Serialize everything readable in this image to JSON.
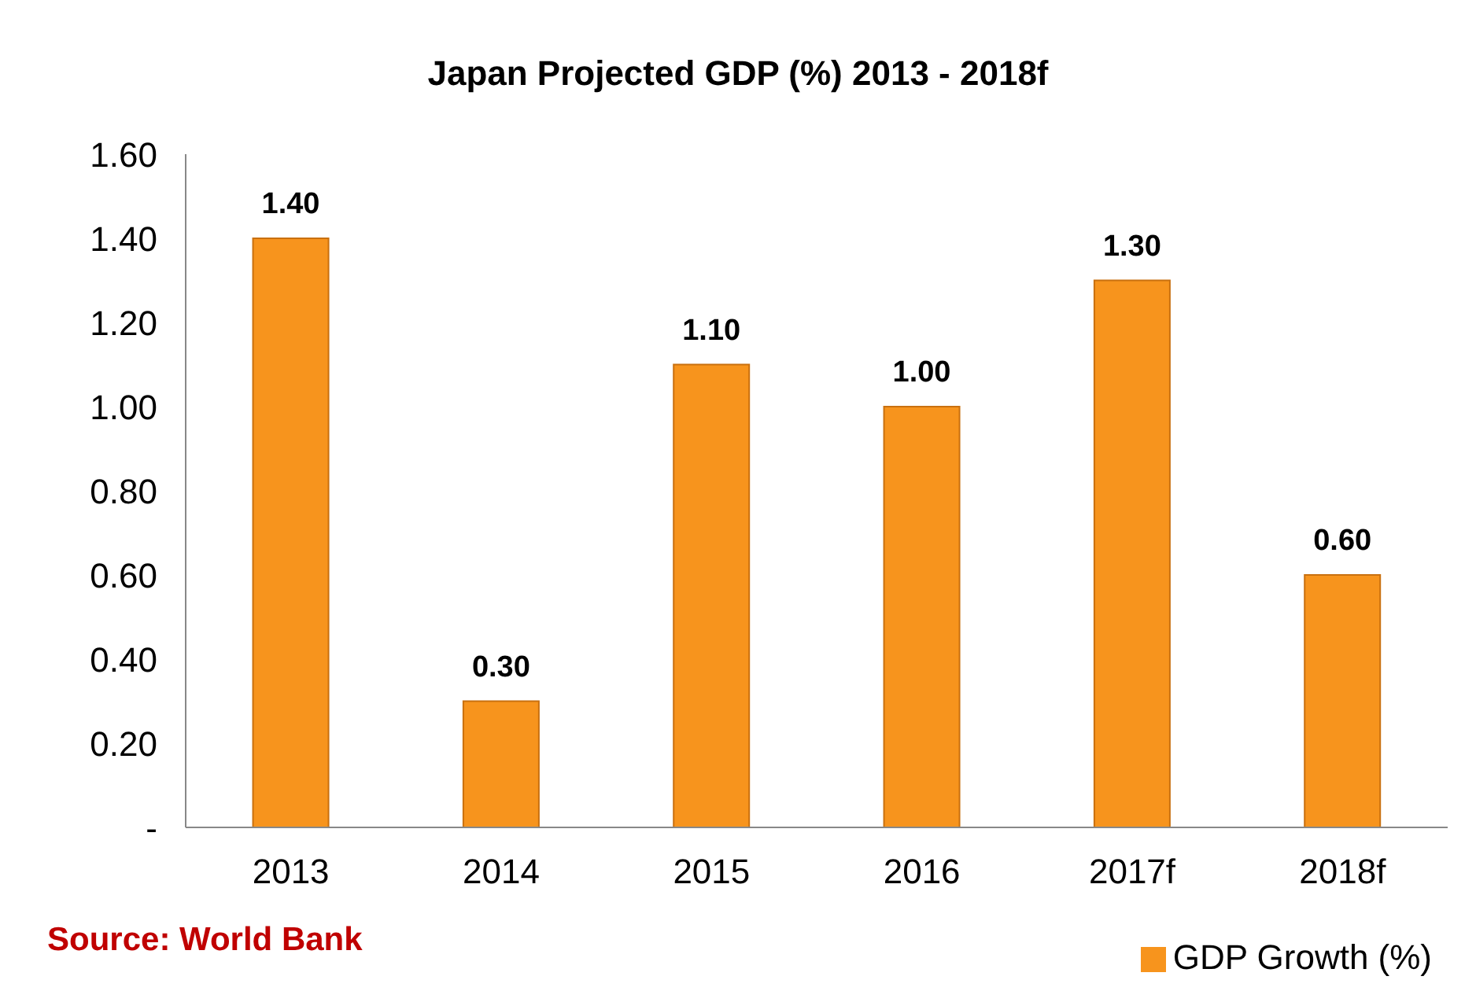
{
  "chart_data": {
    "type": "bar",
    "title": "Japan Projected GDP (%) 2013 - 2018f",
    "categories": [
      "2013",
      "2014",
      "2015",
      "2016",
      "2017f",
      "2018f"
    ],
    "series": [
      {
        "name": "GDP Growth (%)",
        "color": "#f7941d",
        "values": [
          1.4,
          0.3,
          1.1,
          1.0,
          1.3,
          0.6
        ],
        "value_labels": [
          "1.40",
          "0.30",
          "1.10",
          "1.00",
          "1.30",
          "0.60"
        ]
      }
    ],
    "ylim": [
      0,
      1.6
    ],
    "yticks": [
      {
        "value": 0,
        "label": "-"
      },
      {
        "value": 0.2,
        "label": "0.20"
      },
      {
        "value": 0.4,
        "label": "0.40"
      },
      {
        "value": 0.6,
        "label": "0.60"
      },
      {
        "value": 0.8,
        "label": "0.80"
      },
      {
        "value": 1.0,
        "label": "1.00"
      },
      {
        "value": 1.2,
        "label": "1.20"
      },
      {
        "value": 1.4,
        "label": "1.40"
      },
      {
        "value": 1.6,
        "label": "1.60"
      }
    ],
    "grid": false,
    "legend": "bottom right",
    "annotations": [
      "Source: World Bank"
    ]
  }
}
